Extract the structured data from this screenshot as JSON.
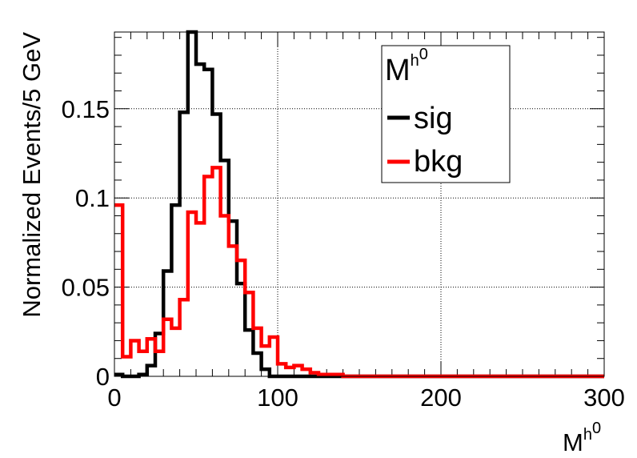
{
  "chart_data": {
    "type": "line",
    "style": "step-histogram",
    "title": "",
    "xlabel": "M",
    "xlabel_sup": "h",
    "xlabel_sup2": "0",
    "ylabel": "Normalized Events/5 GeV",
    "xlim": [
      0,
      300
    ],
    "ylim": [
      0,
      0.193
    ],
    "x_ticks": [
      0,
      100,
      200,
      300
    ],
    "y_ticks": [
      0,
      0.05,
      0.1,
      0.15
    ],
    "x_tick_labels": [
      "0",
      "100",
      "200",
      "300"
    ],
    "y_tick_labels": [
      "0",
      "0.05",
      "0.1",
      "0.15"
    ],
    "grid": true,
    "bin_width": 5,
    "legend": {
      "placement": "top-right",
      "title": "M",
      "title_sup": "h",
      "title_sup2": "0"
    },
    "series": [
      {
        "name": "sig",
        "color": "#000000",
        "values": [
          0.001,
          0.0,
          0.0,
          0.001,
          0.006,
          0.024,
          0.059,
          0.096,
          0.148,
          0.193,
          0.175,
          0.172,
          0.147,
          0.121,
          0.087,
          0.052,
          0.026,
          0.013,
          0.004,
          0.0,
          0.0,
          0.0,
          0.0,
          0.0,
          0.0,
          0.0,
          0.0,
          0.0,
          0.0,
          0.0,
          0.0,
          0.0,
          0.0,
          0.0,
          0.0,
          0.0,
          0.0,
          0.0,
          0.0,
          0.0,
          0.0,
          0.0,
          0.0,
          0.0,
          0.0,
          0.0,
          0.0,
          0.0,
          0.0,
          0.0,
          0.0,
          0.0,
          0.0,
          0.0,
          0.0,
          0.0,
          0.0,
          0.0,
          0.0,
          0.0
        ]
      },
      {
        "name": "bkg",
        "color": "#ff0000",
        "values": [
          0.096,
          0.011,
          0.02,
          0.014,
          0.021,
          0.014,
          0.032,
          0.027,
          0.043,
          0.092,
          0.086,
          0.112,
          0.117,
          0.09,
          0.073,
          0.065,
          0.047,
          0.027,
          0.017,
          0.022,
          0.007,
          0.005,
          0.006,
          0.004,
          0.002,
          0.001,
          0.001,
          0.001,
          0.0,
          0.0,
          0.0,
          0.0,
          0.0,
          0.0,
          0.0,
          0.0,
          0.0,
          0.0,
          0.0,
          0.0,
          0.0,
          0.0,
          0.0,
          0.0,
          0.0,
          0.0,
          0.0,
          0.0,
          0.0,
          0.0,
          0.0,
          0.0,
          0.0,
          0.0,
          0.0,
          0.0,
          0.0,
          0.0,
          0.0,
          0.0
        ]
      }
    ]
  }
}
